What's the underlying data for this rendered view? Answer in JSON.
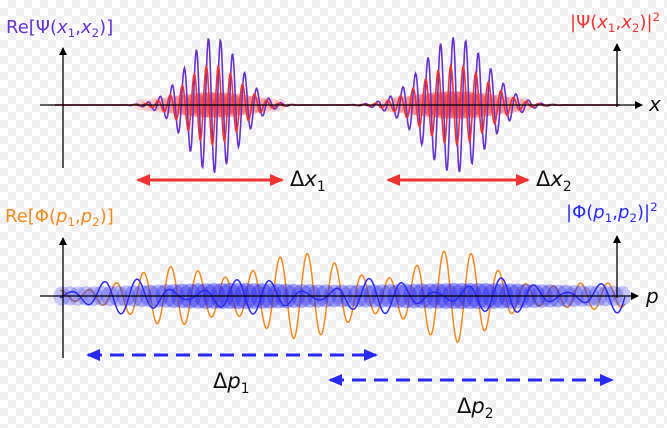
{
  "colors": {
    "purple": "#6633cc",
    "red": "#ee3333",
    "orange": "#f08a1c",
    "blue": "#2a2aee",
    "axis": "#000000"
  },
  "top_panel": {
    "left_label": {
      "prefix": "Re[Ψ(",
      "var1": "x",
      "sub1": "1",
      "sep": ",",
      "var2": "x",
      "sub2": "2",
      "suffix": ")]"
    },
    "right_label": {
      "prefix": "|Ψ(",
      "var1": "x",
      "sub1": "1",
      "sep": ",",
      "var2": "x",
      "sub2": "2",
      "suffix": ")|",
      "sup": "2"
    },
    "axis_label": "x",
    "width_labels": [
      {
        "delta": "Δ",
        "var": "x",
        "sub": "1"
      },
      {
        "delta": "Δ",
        "var": "x",
        "sub": "2"
      }
    ]
  },
  "bottom_panel": {
    "left_label": {
      "prefix": "Re[Φ(",
      "var1": "p",
      "sub1": "1",
      "sep": ",",
      "var2": "p",
      "sub2": "2",
      "suffix": ")]"
    },
    "right_label": {
      "prefix": "|Φ(",
      "var1": "p",
      "sub1": "1",
      "sep": ",",
      "var2": "p",
      "sub2": "2",
      "suffix": ")|",
      "sup": "2"
    },
    "axis_label": "p",
    "width_labels": [
      {
        "delta": "Δ",
        "var": "p",
        "sub": "1"
      },
      {
        "delta": "Δ",
        "var": "p",
        "sub": "2"
      }
    ]
  }
}
